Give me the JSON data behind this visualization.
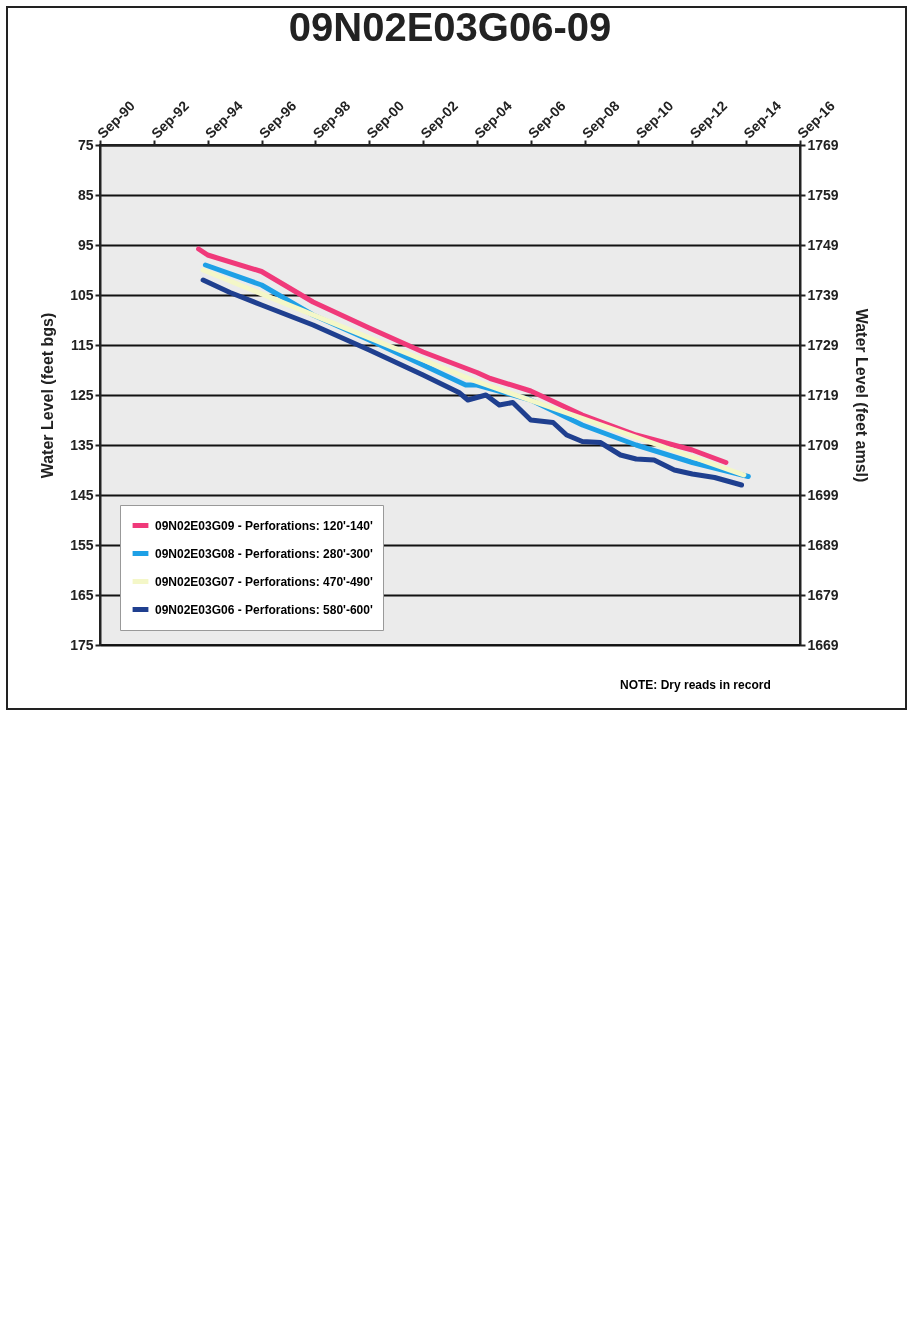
{
  "chart_data": {
    "type": "line",
    "title": "09N02E03G06-09",
    "ylabel": "Water Level (feet bgs)",
    "y2label": "Water Level (feet amsl)",
    "xlim": [
      "1990-09-01",
      "2016-09-01"
    ],
    "xticks": [
      {
        "value": "1990-09-01",
        "label": "Sep-90"
      },
      {
        "value": "1992-09-01",
        "label": "Sep-92"
      },
      {
        "value": "1994-09-01",
        "label": "Sep-94"
      },
      {
        "value": "1996-09-01",
        "label": "Sep-96"
      },
      {
        "value": "1998-09-01",
        "label": "Sep-98"
      },
      {
        "value": "2000-09-01",
        "label": "Sep-00"
      },
      {
        "value": "2002-09-01",
        "label": "Sep-02"
      },
      {
        "value": "2004-09-01",
        "label": "Sep-04"
      },
      {
        "value": "2006-09-01",
        "label": "Sep-06"
      },
      {
        "value": "2008-09-01",
        "label": "Sep-08"
      },
      {
        "value": "2010-09-01",
        "label": "Sep-10"
      },
      {
        "value": "2012-09-01",
        "label": "Sep-12"
      },
      {
        "value": "2014-09-01",
        "label": "Sep-14"
      },
      {
        "value": "2016-09-01",
        "label": "Sep-16"
      }
    ],
    "ylim": [
      175,
      75
    ],
    "yticks": [
      75,
      85,
      95,
      105,
      115,
      125,
      135,
      145,
      155,
      165,
      175
    ],
    "y2lim": [
      1669,
      1769
    ],
    "y2ticks": [
      1769,
      1759,
      1749,
      1739,
      1729,
      1719,
      1709,
      1699,
      1689,
      1679,
      1669
    ],
    "grid": "y",
    "legend": "bottom left",
    "annotations": [
      "NOTE: Dry reads in record"
    ],
    "series": [
      {
        "name": "09N02E03G09 - Perforations: 120'-140'",
        "color": "#f0397a",
        "x": [
          "1994-05",
          "1994-09",
          "1996-09",
          "1998-08",
          "2000-09",
          "2002-09",
          "2004-09",
          "2005-03",
          "2006-09",
          "2008-08",
          "2010-08",
          "2012-09",
          "2013-12"
        ],
        "values": [
          95.8,
          97,
          100.3,
          106.4,
          111.6,
          116.4,
          120.5,
          121.7,
          124.2,
          129,
          133,
          136,
          138.5
        ]
      },
      {
        "name": "09N02E03G08 - Perforations: 280'-300'",
        "color": "#1ea0e6",
        "x": [
          "1994-08",
          "1996-09",
          "1998-08",
          "2000-09",
          "2002-09",
          "2004-04",
          "2004-09",
          "2006-09",
          "2008-08",
          "2010-08",
          "2012-09",
          "2014-10"
        ],
        "values": [
          99,
          103,
          109,
          114,
          119,
          123,
          123,
          126,
          131,
          135,
          138.5,
          141.3
        ]
      },
      {
        "name": "09N02E03G07 - Perforations: 470'-490'",
        "color": "#f4f7c8",
        "x": [
          "1994-07",
          "2004-07",
          "2014-08"
        ],
        "values": [
          100,
          122,
          141
        ]
      },
      {
        "name": "09N02E03G06 - Perforations: 580'-600'",
        "color": "#1f3f8f",
        "x": [
          "1994-07",
          "1995-07",
          "1996-09",
          "1998-08",
          "2000-09",
          "2002-09",
          "2004-01",
          "2004-05",
          "2005-01",
          "2005-07",
          "2006-01",
          "2006-09",
          "2007-07",
          "2008-01",
          "2008-08",
          "2009-04",
          "2010-01",
          "2010-08",
          "2011-04",
          "2012-01",
          "2012-09",
          "2013-07",
          "2014-07"
        ],
        "values": [
          102,
          104.5,
          107,
          111,
          116,
          121,
          124.5,
          126,
          125,
          127,
          126.5,
          130,
          130.5,
          133,
          134.3,
          134.5,
          137,
          137.8,
          138,
          140,
          140.8,
          141.5,
          143
        ]
      }
    ]
  }
}
